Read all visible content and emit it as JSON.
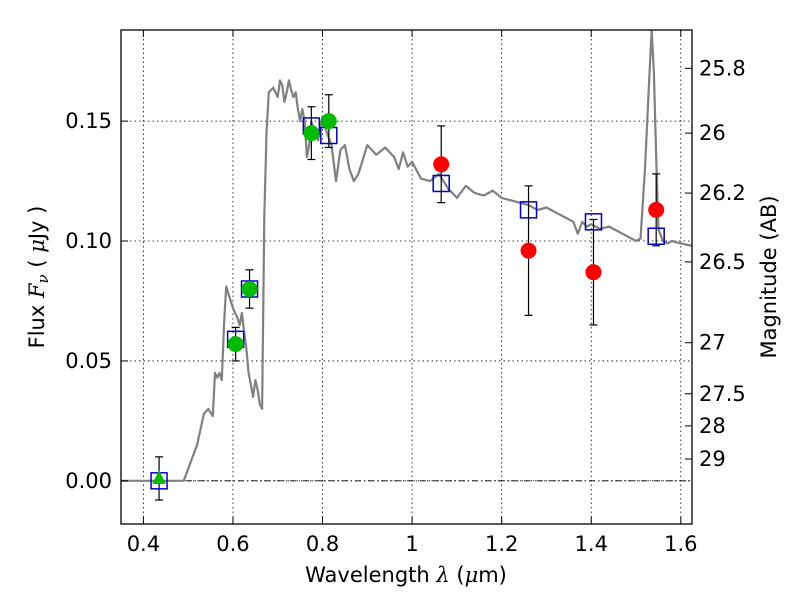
{
  "chart_data": {
    "type": "line",
    "xlabel": "Wavelength  λ (μm)",
    "ylabel": "Flux  Fν  ( μJy )",
    "y2label": "Magnitude (AB)",
    "xlim": [
      0.35,
      1.625
    ],
    "ylim": [
      -0.018,
      0.188
    ],
    "grid": true,
    "x_ticks": [
      0.4,
      0.6,
      0.8,
      1.0,
      1.2,
      1.4,
      1.6
    ],
    "x_tick_labels": [
      "0.4",
      "0.6",
      "0.8",
      "1",
      "1.2",
      "1.4",
      "1.6"
    ],
    "y_ticks": [
      0.0,
      0.05,
      0.1,
      0.15
    ],
    "y_tick_labels": [
      "0.00",
      "0.05",
      "0.10",
      "0.15"
    ],
    "y2_ticks": [
      {
        "label": "25.8",
        "flux": 0.172
      },
      {
        "label": "26",
        "flux": 0.145
      },
      {
        "label": "26.2",
        "flux": 0.12
      },
      {
        "label": "26.5",
        "flux": 0.0913
      },
      {
        "label": "27",
        "flux": 0.0576
      },
      {
        "label": "27.5",
        "flux": 0.0363
      },
      {
        "label": "28",
        "flux": 0.0229
      },
      {
        "label": "29",
        "flux": 0.0091
      }
    ],
    "series": [
      {
        "kind": "model_spectrum",
        "color": "#808080",
        "x": [
          0.35,
          0.49,
          0.5,
          0.52,
          0.535,
          0.545,
          0.555,
          0.56,
          0.565,
          0.57,
          0.575,
          0.58,
          0.585,
          0.595,
          0.6,
          0.61,
          0.615,
          0.62,
          0.625,
          0.63,
          0.635,
          0.64,
          0.645,
          0.65,
          0.655,
          0.66,
          0.665,
          0.67,
          0.675,
          0.68,
          0.69,
          0.7,
          0.705,
          0.71,
          0.715,
          0.72,
          0.725,
          0.73,
          0.735,
          0.74,
          0.745,
          0.75,
          0.755,
          0.76,
          0.765,
          0.77,
          0.775,
          0.78,
          0.79,
          0.8,
          0.81,
          0.82,
          0.83,
          0.84,
          0.85,
          0.86,
          0.87,
          0.88,
          0.9,
          0.92,
          0.94,
          0.96,
          0.97,
          0.98,
          0.99,
          1.0,
          1.02,
          1.04,
          1.06,
          1.08,
          1.1,
          1.12,
          1.14,
          1.16,
          1.18,
          1.2,
          1.22,
          1.24,
          1.26,
          1.28,
          1.3,
          1.32,
          1.34,
          1.36,
          1.37,
          1.38,
          1.39,
          1.4,
          1.42,
          1.44,
          1.46,
          1.48,
          1.5,
          1.51,
          1.52,
          1.53,
          1.535,
          1.54,
          1.545,
          1.55,
          1.56,
          1.57,
          1.58,
          1.6,
          1.625
        ],
        "y": [
          0.0,
          0.0,
          0.005,
          0.015,
          0.028,
          0.03,
          0.027,
          0.045,
          0.043,
          0.045,
          0.042,
          0.065,
          0.081,
          0.075,
          0.072,
          0.068,
          0.065,
          0.07,
          0.062,
          0.055,
          0.045,
          0.04,
          0.035,
          0.042,
          0.038,
          0.032,
          0.03,
          0.11,
          0.145,
          0.162,
          0.164,
          0.16,
          0.167,
          0.165,
          0.158,
          0.162,
          0.167,
          0.163,
          0.16,
          0.162,
          0.155,
          0.15,
          0.155,
          0.15,
          0.135,
          0.14,
          0.15,
          0.147,
          0.142,
          0.152,
          0.145,
          0.14,
          0.125,
          0.138,
          0.14,
          0.13,
          0.125,
          0.128,
          0.14,
          0.136,
          0.139,
          0.135,
          0.13,
          0.137,
          0.131,
          0.133,
          0.126,
          0.125,
          0.128,
          0.122,
          0.118,
          0.123,
          0.12,
          0.119,
          0.121,
          0.118,
          0.117,
          0.116,
          0.115,
          0.113,
          0.114,
          0.112,
          0.11,
          0.108,
          0.103,
          0.108,
          0.106,
          0.107,
          0.105,
          0.106,
          0.104,
          0.102,
          0.1,
          0.101,
          0.13,
          0.17,
          0.188,
          0.17,
          0.135,
          0.105,
          0.1,
          0.099,
          0.1,
          0.099,
          0.098
        ]
      },
      {
        "kind": "model_photometry",
        "marker": "open-square",
        "color": "#0000cc",
        "x": [
          0.435,
          0.606,
          0.637,
          0.775,
          0.814,
          1.065,
          1.26,
          1.405,
          1.545
        ],
        "y": [
          0.0,
          0.059,
          0.08,
          0.148,
          0.144,
          0.124,
          0.113,
          0.108,
          0.102
        ]
      },
      {
        "kind": "observed_optical",
        "marker": "filled-circle",
        "color": "#00bb00",
        "x": [
          0.606,
          0.637,
          0.775,
          0.814
        ],
        "y": [
          0.057,
          0.08,
          0.145,
          0.15
        ],
        "err": [
          0.007,
          0.008,
          0.011,
          0.011
        ]
      },
      {
        "kind": "upper_limit",
        "marker": "triangle",
        "color": "#00bb00",
        "x": [
          0.435
        ],
        "y": [
          0.001
        ],
        "err": [
          0.009
        ]
      },
      {
        "kind": "observed_nir",
        "marker": "filled-circle",
        "color": "#ff0000",
        "x": [
          1.065,
          1.26,
          1.405,
          1.545
        ],
        "y": [
          0.132,
          0.096,
          0.087,
          0.113
        ],
        "err": [
          0.016,
          0.027,
          0.022,
          0.015
        ]
      }
    ]
  }
}
